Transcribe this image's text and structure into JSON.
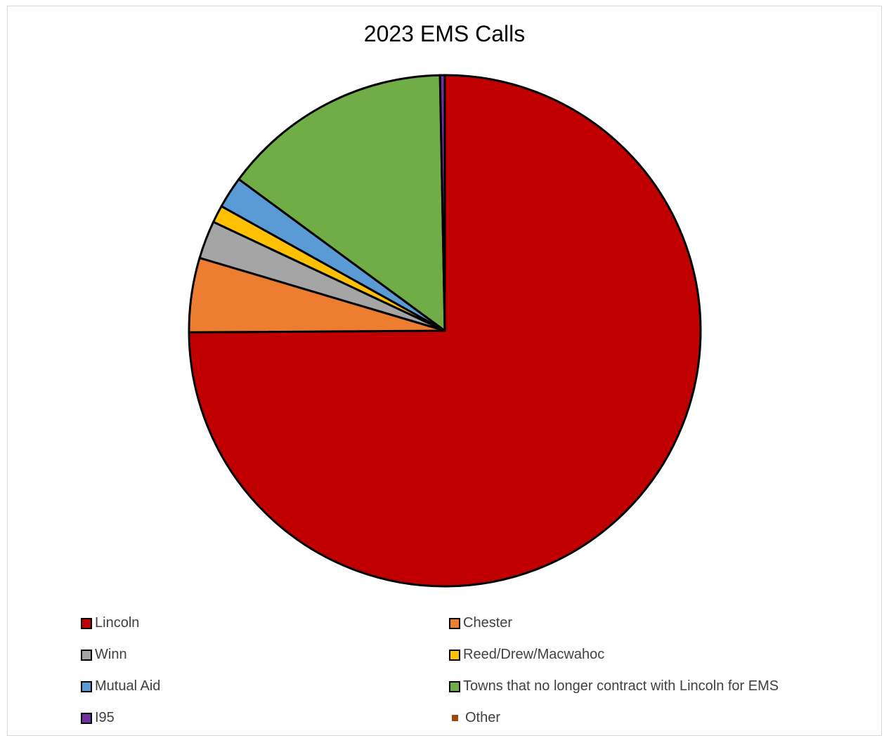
{
  "chart_data": {
    "type": "pie",
    "title": "2023 EMS Calls",
    "legend_position": "bottom",
    "slice_order": "clockwise-from-top",
    "categories": [
      "Lincoln",
      "Chester",
      "Winn",
      "Reed/Drew/Macwahoc",
      "Mutual Aid",
      "Towns that no longer contract with Lincoln for EMS",
      "I95",
      "Other"
    ],
    "values": [
      74.9,
      4.7,
      2.4,
      1.1,
      2.0,
      14.6,
      0.3,
      0
    ],
    "value_unit": "percent (estimated)",
    "colors": [
      "#c00000",
      "#ed7d31",
      "#a5a5a5",
      "#ffc000",
      "#5b9bd5",
      "#70ad47",
      "#7030a0",
      "#9e480e"
    ]
  }
}
